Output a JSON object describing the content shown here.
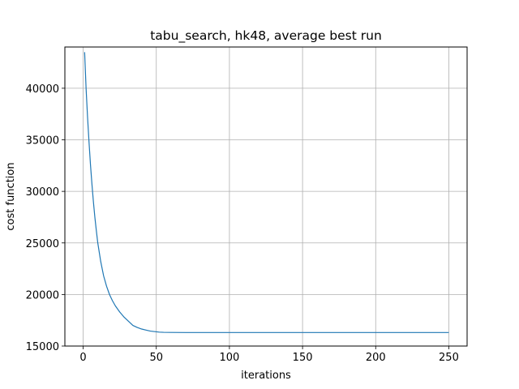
{
  "chart_data": {
    "type": "line",
    "title": "tabu_search, hk48, average best run",
    "xlabel": "iterations",
    "ylabel": "cost function",
    "xlim": [
      -12.5,
      262.5
    ],
    "ylim": [
      15000,
      44000
    ],
    "x_ticks": [
      0,
      50,
      100,
      150,
      200,
      250
    ],
    "y_ticks": [
      15000,
      20000,
      25000,
      30000,
      35000,
      40000
    ],
    "grid": true,
    "series_color": "#1f77b4",
    "series": [
      {
        "x": [
          1,
          2,
          3,
          4,
          5,
          6,
          7,
          8,
          9,
          10,
          12,
          14,
          16,
          18,
          20,
          22,
          25,
          28,
          31,
          34,
          37,
          40,
          43,
          46,
          49,
          52,
          55,
          60,
          70,
          80,
          100,
          150,
          200,
          250
        ],
        "y": [
          43500,
          40000,
          37200,
          34800,
          32600,
          30700,
          29000,
          27500,
          26200,
          25000,
          23200,
          21800,
          20800,
          20000,
          19400,
          18900,
          18300,
          17800,
          17400,
          17000,
          16800,
          16650,
          16550,
          16450,
          16400,
          16350,
          16330,
          16320,
          16310,
          16310,
          16310,
          16310,
          16310,
          16310
        ]
      }
    ]
  }
}
